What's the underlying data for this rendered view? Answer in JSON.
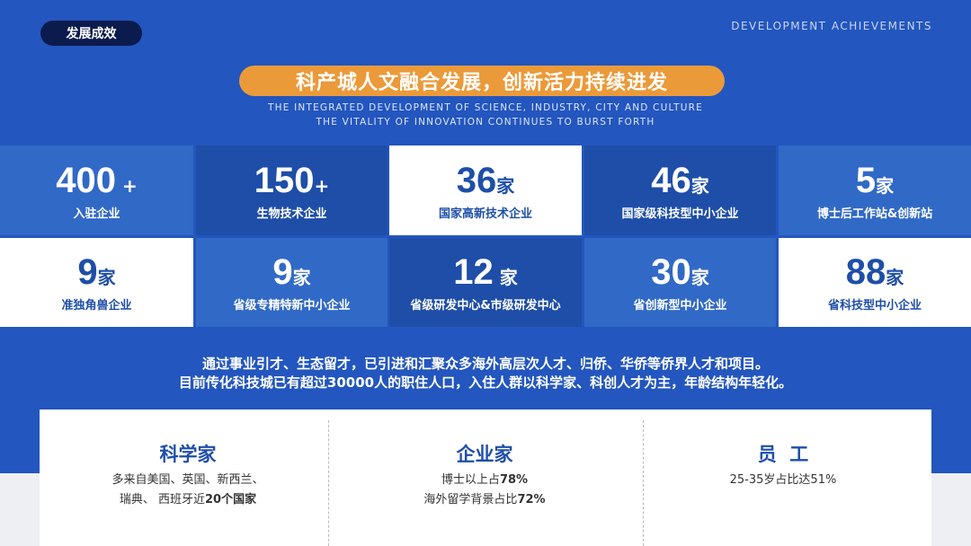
{
  "header": {
    "badge": "发展成效",
    "en_tag": "DEVELOPMENT ACHIEVEMENTS",
    "title": "科产城人文融合发展，创新活力持续进发",
    "subtitle_1": "THE INTEGRATED DEVELOPMENT OF SCIENCE, INDUSTRY, CITY AND CULTURE",
    "subtitle_2": "THE VITALITY OF INNOVATION CONTINUES TO BURST FORTH"
  },
  "stats": [
    {
      "num": "400",
      "unit": " +",
      "label": "入驻企业"
    },
    {
      "num": "150",
      "unit": "+",
      "label": "生物技术企业"
    },
    {
      "num": "36",
      "unit": "家",
      "label": "国家高新技术企业"
    },
    {
      "num": "46",
      "unit": "家",
      "label": "国家级科技型中小企业"
    },
    {
      "num": "5",
      "unit": "家",
      "label": "博士后工作站&创新站"
    },
    {
      "num": "9",
      "unit": "家",
      "label": "准独角兽企业"
    },
    {
      "num": "9",
      "unit": "家",
      "label": "省级专精特新中小企业"
    },
    {
      "num": "12",
      "unit": " 家",
      "label": "省级研发中心&市级研发中心"
    },
    {
      "num": "30",
      "unit": "家",
      "label": "省创新型中小企业"
    },
    {
      "num": "88",
      "unit": "家",
      "label": "省科技型中小企业"
    }
  ],
  "colors": {
    "background": "#2356be",
    "cell_light": "#3169c6",
    "cell_dark": "#1e4ea8",
    "accent": "#eb9a3a",
    "badge": "#0c1b4d"
  },
  "paragraph": {
    "line1": "通过事业引才、生态留才，已引进和汇聚众多海外高层次人才、归侨、华侨等侨界人才和项目。",
    "line2": "目前传化科技城已有超过30000人的职住人口，入住人群以科学家、科创人才为主，年龄结构年轻化。"
  },
  "talent": [
    {
      "title": "科学家",
      "l1": "多来自美国、英国、新西兰、",
      "l2a": "瑞典、 西班牙近",
      "l2b": "20个国家"
    },
    {
      "title": "企业家",
      "l1a": "博士以上占",
      "l1b": "78%",
      "l2a": "海外留学背景占比",
      "l2b": "72%"
    },
    {
      "title": "员  工",
      "l1": "25-35岁占比达51%"
    }
  ]
}
